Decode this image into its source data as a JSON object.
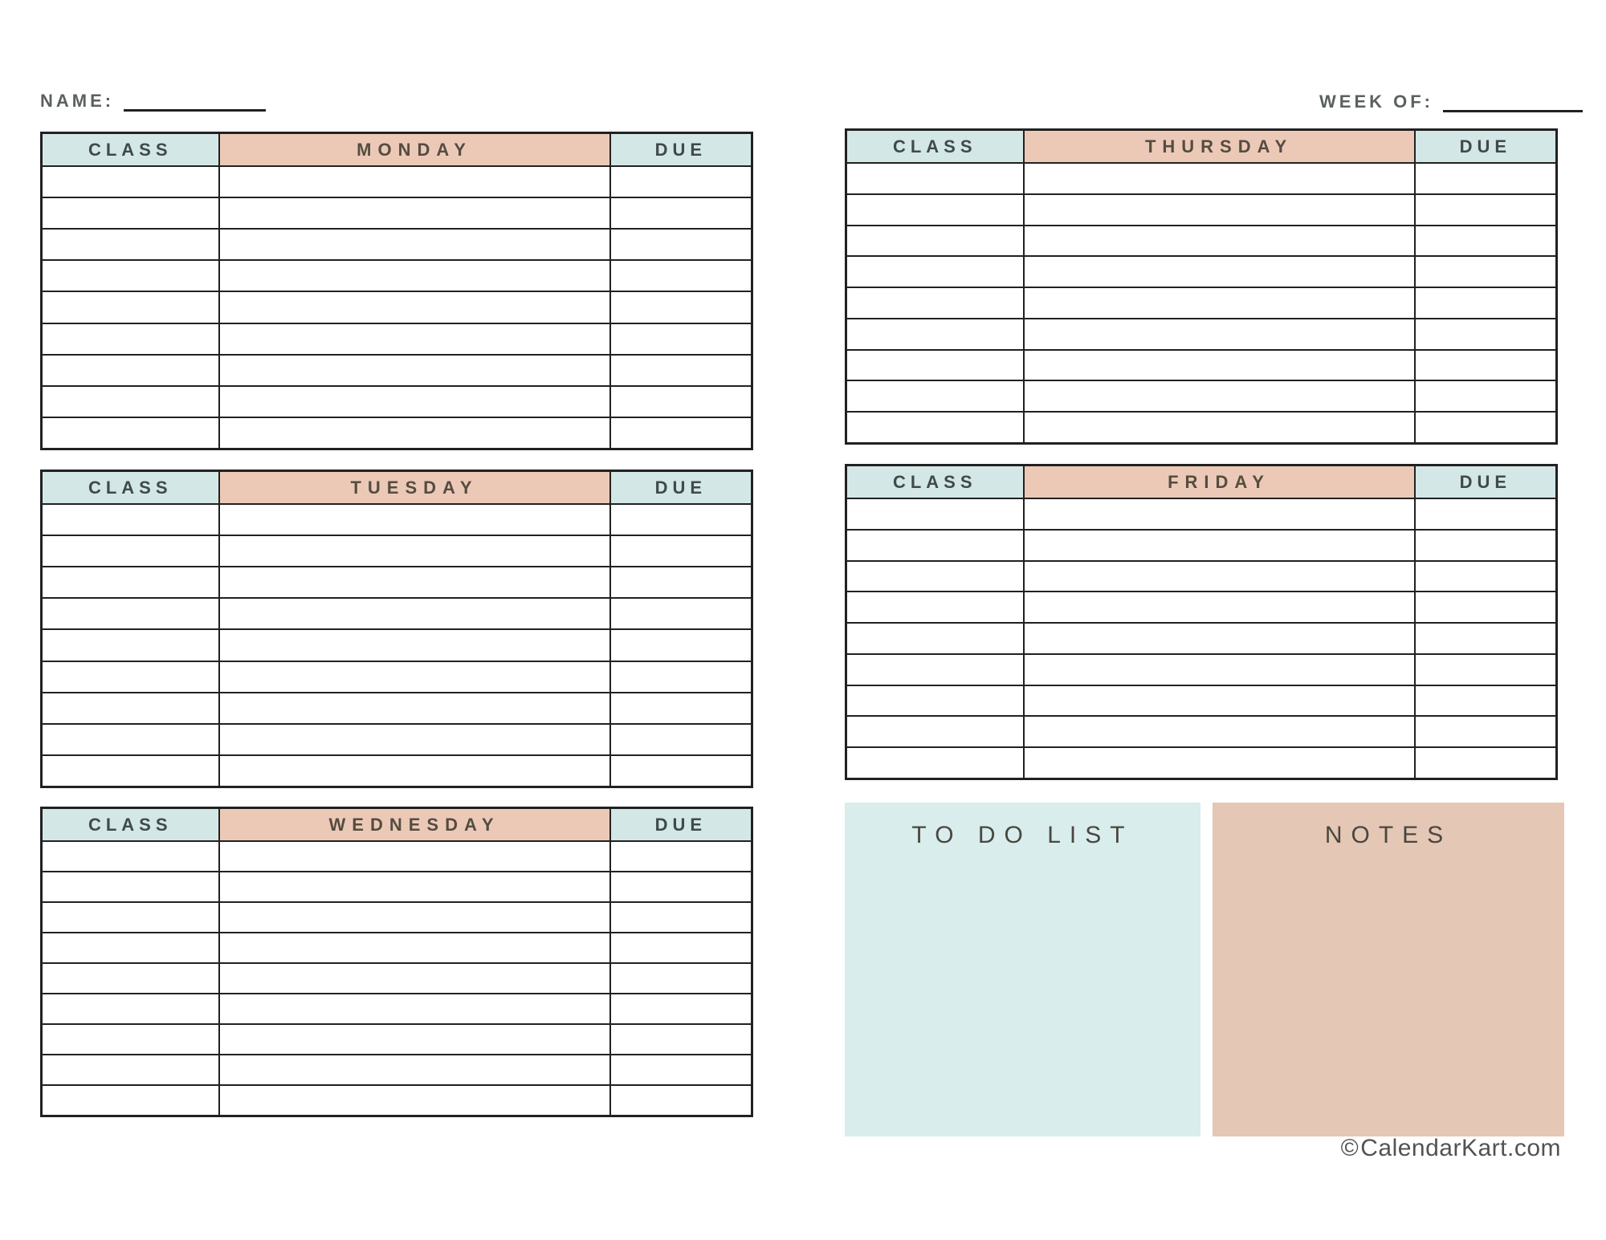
{
  "header": {
    "name_label": "NAME:",
    "week_of_label": "WEEK OF:"
  },
  "tables": [
    {
      "day": "monday",
      "class_header": "CLASS",
      "day_header": "MONDAY",
      "due_header": "DUE",
      "rows": 9
    },
    {
      "day": "tuesday",
      "class_header": "CLASS",
      "day_header": "TUESDAY",
      "due_header": "DUE",
      "rows": 9
    },
    {
      "day": "wednesday",
      "class_header": "CLASS",
      "day_header": "WEDNESDAY",
      "due_header": "DUE",
      "rows": 9
    },
    {
      "day": "thursday",
      "class_header": "CLASS",
      "day_header": "THURSDAY",
      "due_header": "DUE",
      "rows": 9
    },
    {
      "day": "friday",
      "class_header": "CLASS",
      "day_header": "FRIDAY",
      "due_header": "DUE",
      "rows": 9
    }
  ],
  "panels": {
    "todo_title": "TO DO LIST",
    "notes_title": "NOTES"
  },
  "footer": {
    "copyright_symbol": "©",
    "site": "CalendarKart.com"
  },
  "colors": {
    "header_blue": "#d3e7e7",
    "header_tan": "#ecc9b7",
    "todo_bg": "#d8edec",
    "notes_bg": "#e4c7b5",
    "border": "#212121"
  }
}
